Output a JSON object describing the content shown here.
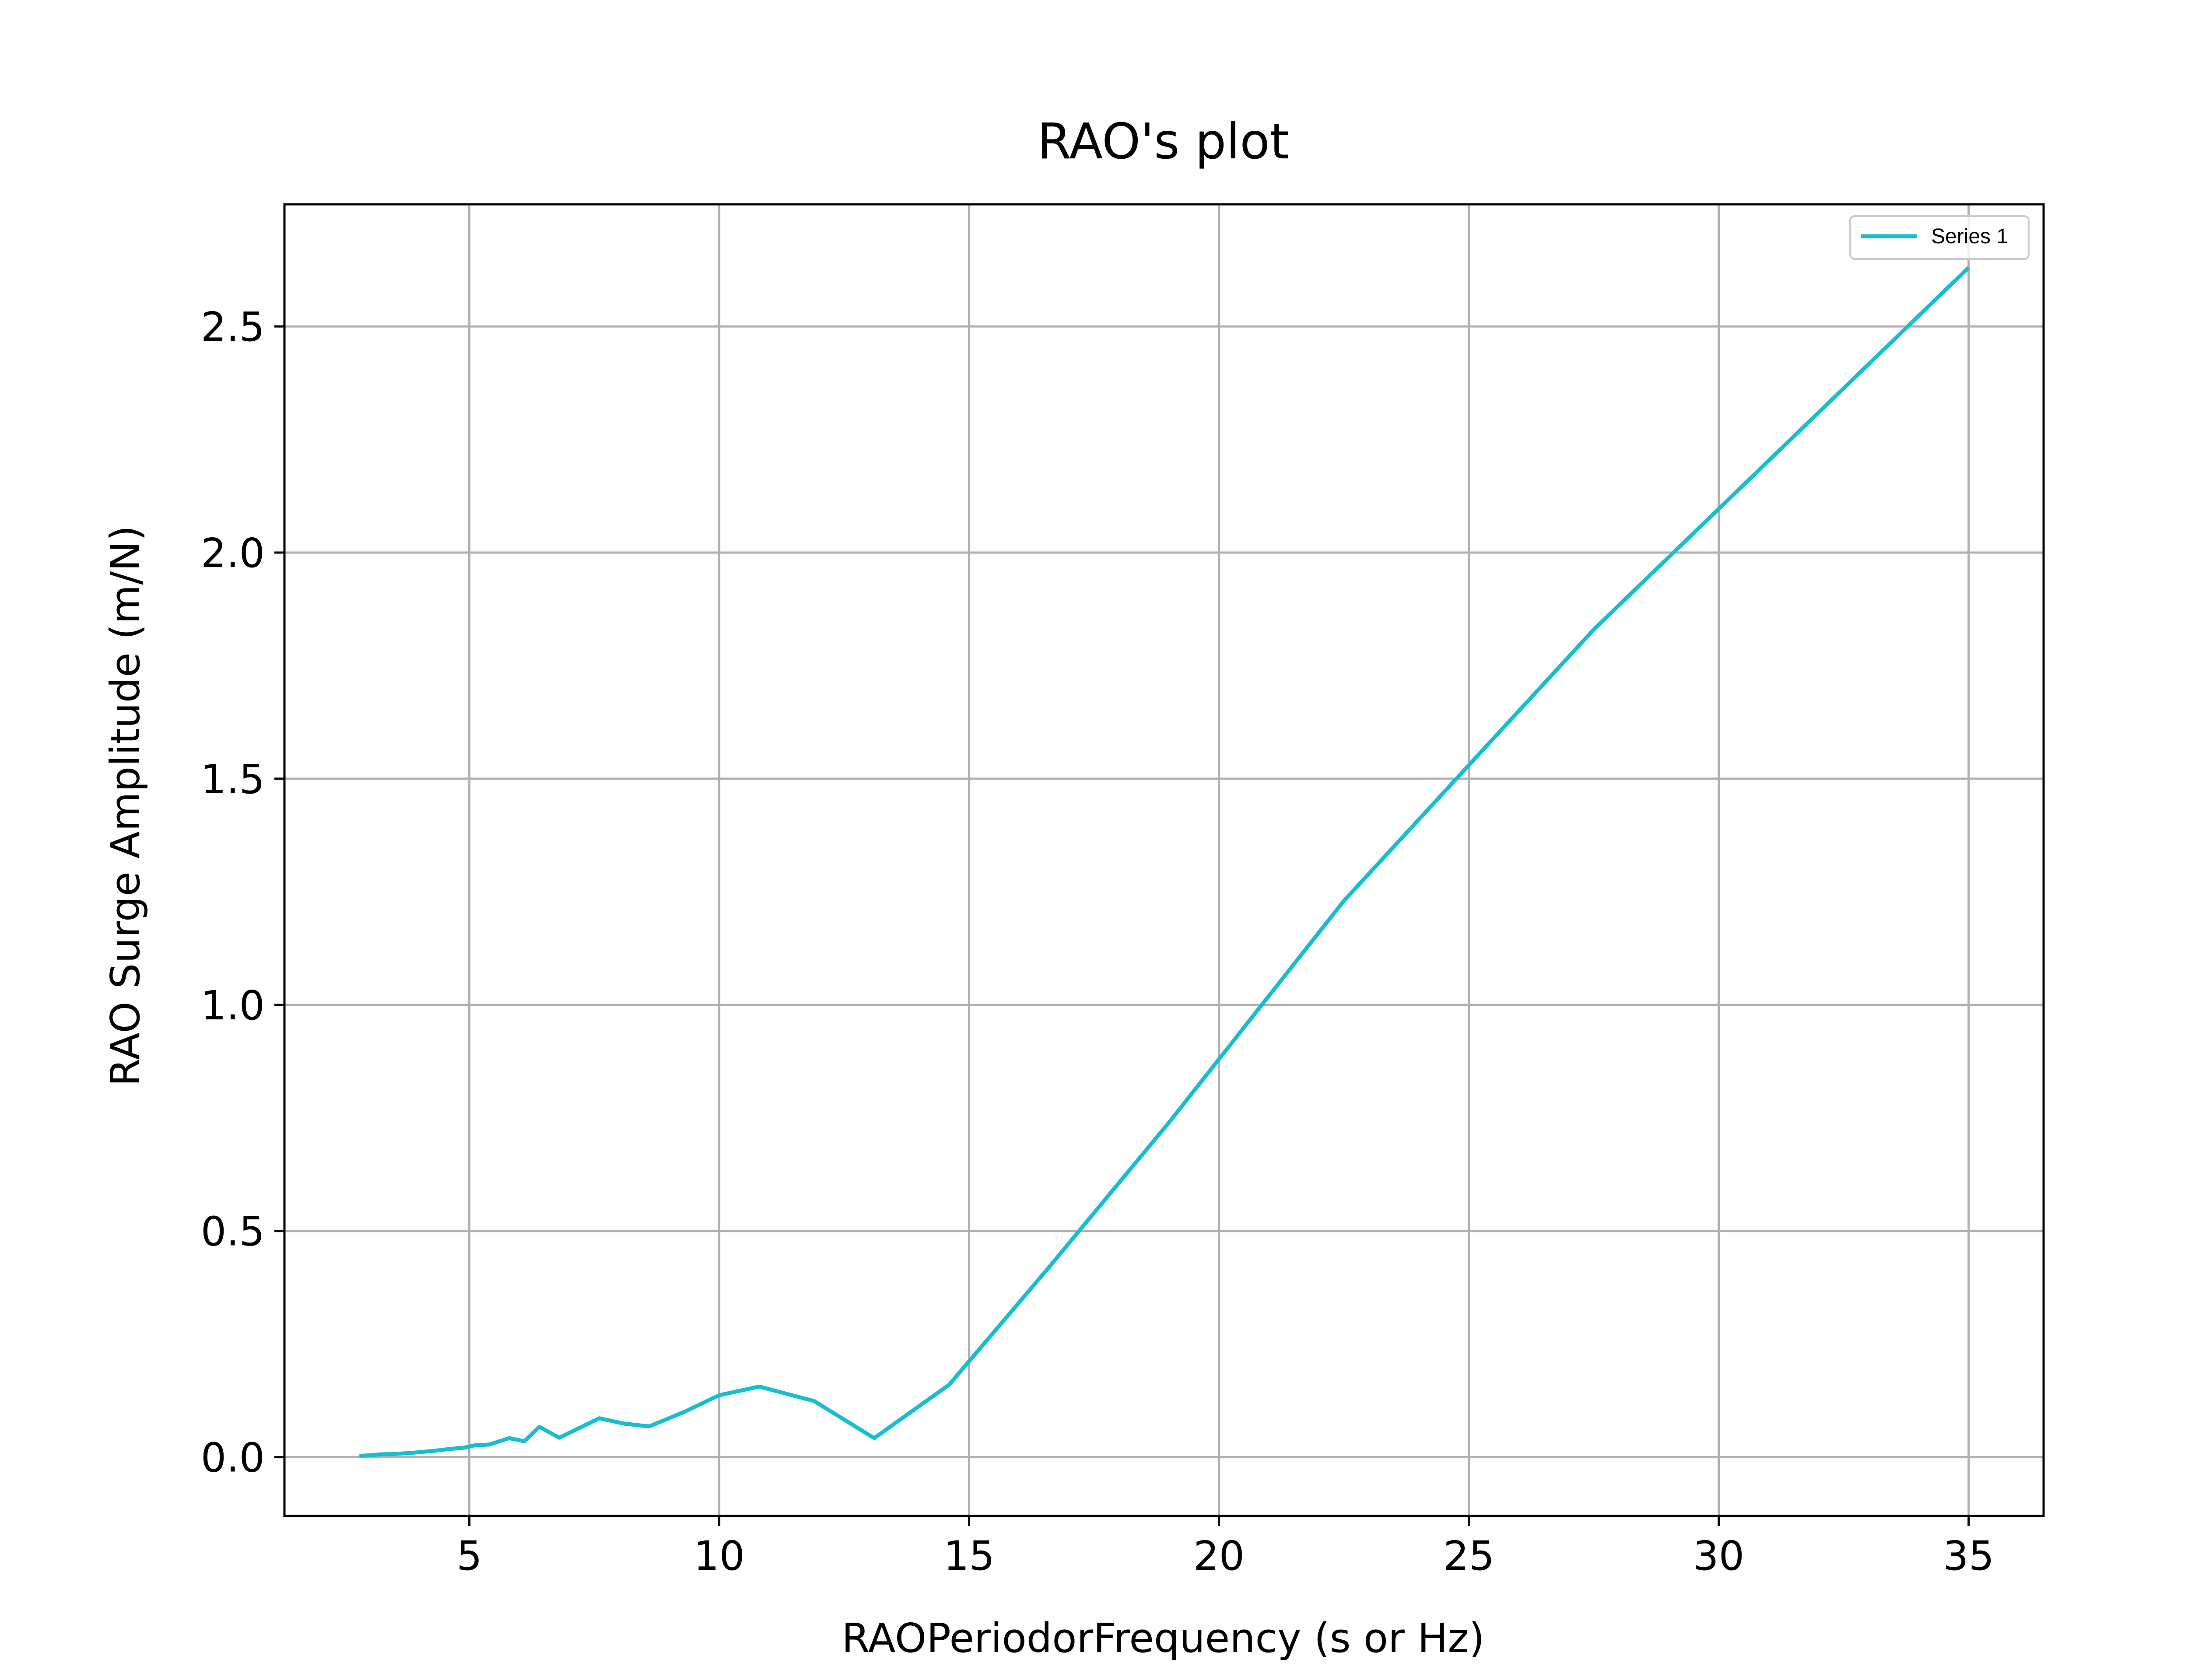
{
  "chart_data": {
    "type": "line",
    "title": "RAO's plot",
    "xlabel": "RAOPeriodorFrequency (s or Hz)",
    "ylabel": "RAO Surge Amplitude (m/N)",
    "xlim": [
      1.3,
      36.5
    ],
    "ylim": [
      -0.13,
      2.77
    ],
    "xticks": [
      5,
      10,
      15,
      20,
      25,
      30,
      35
    ],
    "xtick_labels": [
      "5",
      "10",
      "15",
      "20",
      "25",
      "30",
      "35"
    ],
    "yticks": [
      0.0,
      0.5,
      1.0,
      1.5,
      2.0,
      2.5
    ],
    "ytick_labels": [
      "0.0",
      "0.5",
      "1.0",
      "1.5",
      "2.0",
      "2.5"
    ],
    "grid": true,
    "legend_position": "top-right",
    "series": [
      {
        "name": "Series 1",
        "color": "#17becf",
        "x": [
          2.8,
          3.0,
          3.2,
          3.5,
          3.8,
          4.0,
          4.3,
          4.6,
          4.9,
          5.1,
          5.4,
          5.8,
          6.1,
          6.4,
          6.8,
          7.6,
          8.1,
          8.6,
          9.3,
          10.0,
          10.8,
          11.9,
          13.1,
          14.6,
          16.6,
          19.0,
          22.5,
          27.5,
          35.0
        ],
        "values": [
          0.003,
          0.004,
          0.006,
          0.007,
          0.009,
          0.011,
          0.014,
          0.018,
          0.021,
          0.026,
          0.028,
          0.042,
          0.035,
          0.067,
          0.043,
          0.086,
          0.074,
          0.068,
          0.1,
          0.137,
          0.156,
          0.124,
          0.042,
          0.16,
          0.42,
          0.74,
          1.23,
          1.83,
          2.63
        ]
      }
    ]
  }
}
